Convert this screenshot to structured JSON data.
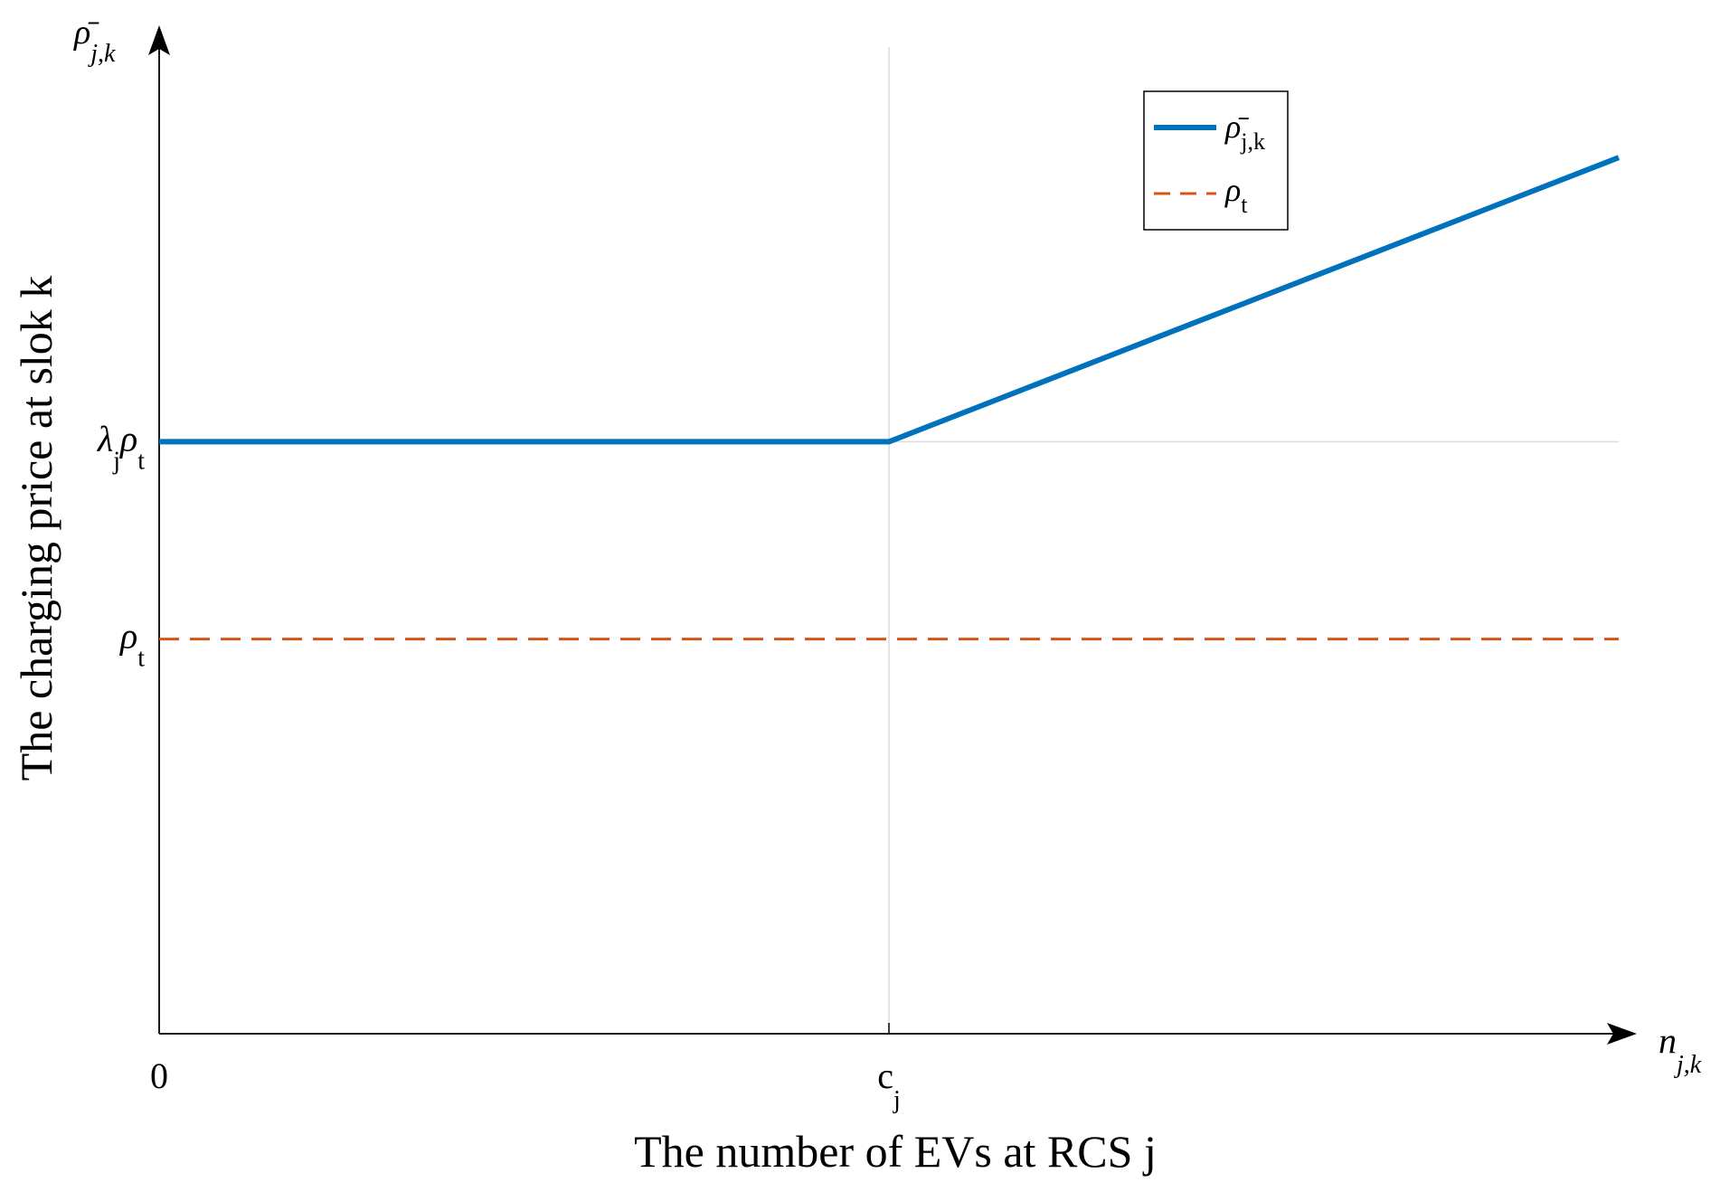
{
  "chart_data": {
    "type": "line",
    "title": "",
    "xlabel": "The number of EVs at RCS j",
    "ylabel": "The charging price at slok k",
    "xlim": [
      0,
      2
    ],
    "ylim": [
      0,
      2.5
    ],
    "grid": false,
    "legend_position": "top-right",
    "axis_end_labels": {
      "y": {
        "base": "ρ̄",
        "sub": "j,k"
      },
      "x": {
        "base": "n",
        "sub": "j,k"
      }
    },
    "x_ticks": [
      {
        "value": 0,
        "base": "0",
        "sub": ""
      },
      {
        "value": 1,
        "base": "c",
        "sub": "j"
      }
    ],
    "y_ticks": [
      {
        "value": 1.5,
        "base": "λ",
        "sub": "j",
        "base2": "ρ",
        "sub2": "t"
      },
      {
        "value": 1.0,
        "base": "ρ",
        "sub": "t"
      }
    ],
    "reference_lines": [
      {
        "orientation": "vertical",
        "value": 1
      },
      {
        "orientation": "horizontal",
        "value": 1.5
      }
    ],
    "series": [
      {
        "name": "ρ̄ j,k",
        "legend": {
          "base": "ρ̄",
          "sub": "j,k"
        },
        "color": "#0072BD",
        "style": "solid",
        "x": [
          0,
          1,
          2
        ],
        "y": [
          1.5,
          1.5,
          2.22
        ]
      },
      {
        "name": "ρ t",
        "legend": {
          "base": "ρ",
          "sub": "t"
        },
        "color": "#D95319",
        "style": "dashed",
        "x": [
          0,
          2
        ],
        "y": [
          1.0,
          1.0
        ]
      }
    ]
  }
}
